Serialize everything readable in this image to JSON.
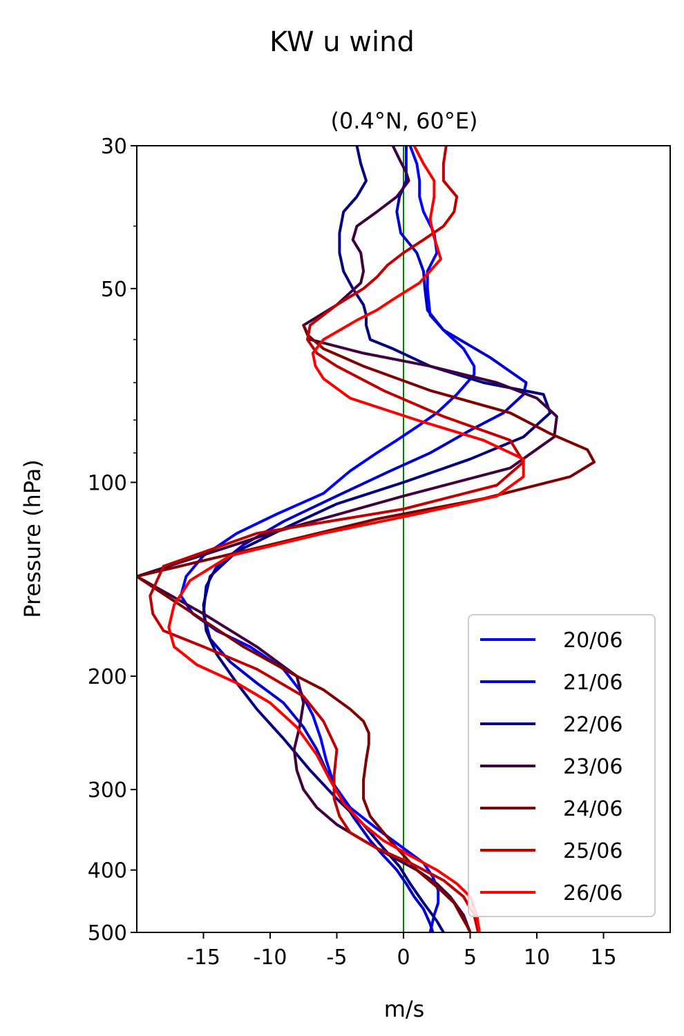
{
  "suptitle": "KW u wind",
  "chart_data": {
    "type": "line",
    "title": "(0.4°N, 60°E)",
    "xlabel": "m/s",
    "ylabel": "Pressure (hPa)",
    "xlim": [
      -20,
      20
    ],
    "ylim": [
      500,
      30
    ],
    "y_scale": "log",
    "x_ticks": [
      -15,
      -10,
      -5,
      0,
      5,
      10,
      15
    ],
    "x_tick_labels": [
      "-15",
      "-10",
      "-5",
      "0",
      "5",
      "10",
      "15"
    ],
    "y_ticks": [
      30,
      50,
      100,
      200,
      300,
      400,
      500
    ],
    "y_tick_labels": [
      "30",
      "50",
      "100",
      "200",
      "300",
      "400",
      "500"
    ],
    "y_minor_ticks": [
      40,
      60,
      70,
      80,
      90
    ],
    "grid": false,
    "legend_position": "bottom-right",
    "reference_line": {
      "x": 0,
      "color": "#008000"
    },
    "series": [
      {
        "name": "20/06",
        "color": "#0000ff",
        "x": [
          0.5,
          1.0,
          1.2,
          1.2,
          1.5,
          2.3,
          2.5,
          1.8,
          1.8,
          2.0,
          3.0,
          4.5,
          5.3,
          5.3,
          4.0,
          2.5,
          1.0,
          -0.5,
          -2.0,
          -4.0,
          -6.0,
          -9.5,
          -12.5,
          -15.0,
          -16.3,
          -16.7,
          -15.8,
          -14.0,
          -11.5,
          -9.0,
          -7.8,
          -6.8,
          -6.2,
          -5.8,
          -5.2,
          -4.0,
          -2.0,
          0.0,
          1.5,
          2.2,
          2.6,
          2.6,
          2.3,
          2.1,
          2.0
        ],
        "y": [
          30,
          32,
          34,
          36,
          38,
          41,
          44,
          47,
          50,
          55,
          58,
          62,
          66,
          68,
          73,
          78,
          82,
          86,
          90,
          96,
          104,
          112,
          120,
          130,
          140,
          150,
          160,
          170,
          180,
          195,
          210,
          230,
          250,
          270,
          295,
          320,
          345,
          370,
          390,
          410,
          430,
          450,
          470,
          490,
          500
        ]
      },
      {
        "name": "21/06",
        "color": "#0000cc",
        "x": [
          0.2,
          0.2,
          0.2,
          -0.3,
          -0.5,
          -0.2,
          1.0,
          1.5,
          1.6,
          1.8,
          3.0,
          6.5,
          9.2,
          9.0,
          7.5,
          5.0,
          2.0,
          -1.0,
          -5.0,
          -9.0,
          -12.0,
          -14.0,
          -14.8,
          -15.0,
          -14.5,
          -13.0,
          -11.0,
          -9.0,
          -7.5,
          -6.5,
          -5.8,
          -5.0,
          -3.8,
          -2.5,
          -1.5,
          -0.5,
          0.2,
          0.8,
          1.5,
          2.0,
          2.2
        ],
        "y": [
          30,
          32,
          34,
          36,
          38,
          41,
          44,
          47,
          50,
          54,
          58,
          64,
          70,
          73,
          78,
          83,
          90,
          96,
          105,
          115,
          125,
          135,
          145,
          160,
          175,
          190,
          205,
          220,
          240,
          260,
          280,
          300,
          330,
          360,
          380,
          400,
          420,
          440,
          460,
          485,
          500
        ]
      },
      {
        "name": "22/06",
        "color": "#000080",
        "x": [
          -3.5,
          -3.2,
          -2.8,
          -3.5,
          -4.5,
          -4.8,
          -4.8,
          -4.5,
          -3.8,
          -3.0,
          -2.8,
          -2.8,
          -2.5,
          -0.8,
          2.0,
          6.0,
          10.5,
          11.0,
          9.0,
          5.0,
          0.0,
          -5.0,
          -9.0,
          -12.5,
          -14.5,
          -15.0,
          -14.8,
          -14.0,
          -12.5,
          -11.0,
          -9.0,
          -7.0,
          -5.0,
          -3.0,
          -1.5,
          -0.3,
          0.5,
          1.5,
          2.5,
          3.0
        ],
        "y": [
          30,
          32,
          34,
          36,
          38,
          41,
          44,
          47,
          50,
          53,
          55,
          57,
          60,
          62,
          66,
          70,
          73,
          78,
          85,
          92,
          100,
          108,
          118,
          128,
          140,
          155,
          170,
          185,
          205,
          225,
          250,
          280,
          310,
          340,
          370,
          395,
          420,
          450,
          480,
          500
        ]
      },
      {
        "name": "23/06",
        "color": "#400040",
        "x": [
          -0.8,
          -0.3,
          0.2,
          0.4,
          -0.5,
          -2.0,
          -3.5,
          -3.8,
          -3.2,
          -3.0,
          -3.2,
          -5.0,
          -7.5,
          -7.0,
          -3.0,
          2.0,
          7.0,
          10.0,
          11.5,
          11.3,
          8.0,
          0.0,
          -10.0,
          -20.0,
          -15.0,
          -11.0,
          -8.0,
          -7.5,
          -7.8,
          -8.2,
          -8.0,
          -7.5,
          -6.5,
          -5.0,
          -3.0,
          -1.0,
          1.0,
          2.5,
          3.5,
          4.5,
          5.0
        ],
        "y": [
          30,
          31.5,
          33,
          34,
          36,
          38,
          40,
          42,
          44,
          47,
          49,
          53,
          57,
          60,
          63,
          66,
          70,
          74,
          79,
          85,
          95,
          105,
          120,
          140,
          160,
          180,
          200,
          220,
          240,
          260,
          280,
          300,
          320,
          340,
          360,
          380,
          400,
          420,
          440,
          470,
          500
        ]
      },
      {
        "name": "24/06",
        "color": "#800000",
        "x": [
          -7.5,
          -7.2,
          -6.0,
          -3.0,
          2.0,
          8.0,
          11.0,
          13.8,
          14.3,
          12.5,
          6.0,
          -2.0,
          -10.0,
          -20.0,
          -12.0,
          -8.0,
          -6.0,
          -4.0,
          -3.0,
          -2.6,
          -2.6,
          -2.8,
          -3.0,
          -3.0,
          -2.5,
          -1.0,
          1.0,
          2.8,
          3.8,
          4.3,
          4.8,
          5.0
        ],
        "y": [
          57,
          59,
          62,
          66,
          72,
          78,
          84,
          89,
          93,
          98,
          106,
          114,
          125,
          140,
          180,
          200,
          210,
          225,
          235,
          245,
          255,
          270,
          290,
          310,
          330,
          360,
          400,
          430,
          450,
          470,
          490,
          500
        ]
      },
      {
        "name": "25/06",
        "color": "#c00000",
        "x": [
          3.2,
          3.0,
          3.0,
          4.0,
          3.8,
          3.0,
          1.5,
          0.0,
          -1.2,
          -2.0,
          -3.0,
          -5.0,
          -7.0,
          -7.2,
          -6.5,
          -5.0,
          -1.5,
          3.0,
          8.0,
          9.0,
          7.0,
          0.0,
          -11.0,
          -18.0,
          -19.0,
          -18.8,
          -18.0,
          -15.0,
          -11.0,
          -7.5,
          -6.0,
          -5.0,
          -5.2,
          -5.2,
          -4.8,
          -4.0,
          -2.0,
          0.5,
          3.0,
          4.5,
          5.3,
          5.6
        ],
        "y": [
          30,
          32,
          34,
          36,
          38,
          40,
          42,
          44,
          46,
          48,
          50,
          53,
          57,
          60,
          63,
          66,
          72,
          79,
          86,
          93,
          101,
          110,
          120,
          135,
          150,
          160,
          170,
          180,
          195,
          215,
          235,
          260,
          285,
          310,
          330,
          350,
          370,
          390,
          415,
          440,
          470,
          500
        ]
      },
      {
        "name": "26/06",
        "color": "#ff0000",
        "x": [
          0.8,
          1.5,
          2.3,
          2.3,
          2.0,
          2.2,
          2.8,
          1.2,
          -0.8,
          -2.0,
          -3.5,
          -6.0,
          -6.8,
          -6.6,
          -6.0,
          -4.0,
          1.0,
          6.0,
          9.0,
          9.0,
          7.0,
          1.0,
          -6.0,
          -13.0,
          -16.0,
          -17.2,
          -17.6,
          -17.2,
          -15.5,
          -12.5,
          -10.0,
          -8.0,
          -6.5,
          -5.5,
          -4.5,
          -3.0,
          -1.5,
          0.5,
          2.5,
          4.0,
          5.0,
          5.5,
          5.7
        ],
        "y": [
          30,
          32,
          34,
          36,
          39,
          41,
          45,
          49,
          52,
          54,
          56,
          60,
          63,
          66,
          69,
          74,
          80,
          86,
          92,
          98,
          105,
          112,
          120,
          130,
          142,
          155,
          168,
          180,
          192,
          205,
          220,
          240,
          265,
          290,
          315,
          340,
          360,
          380,
          400,
          420,
          440,
          470,
          500
        ]
      }
    ]
  }
}
